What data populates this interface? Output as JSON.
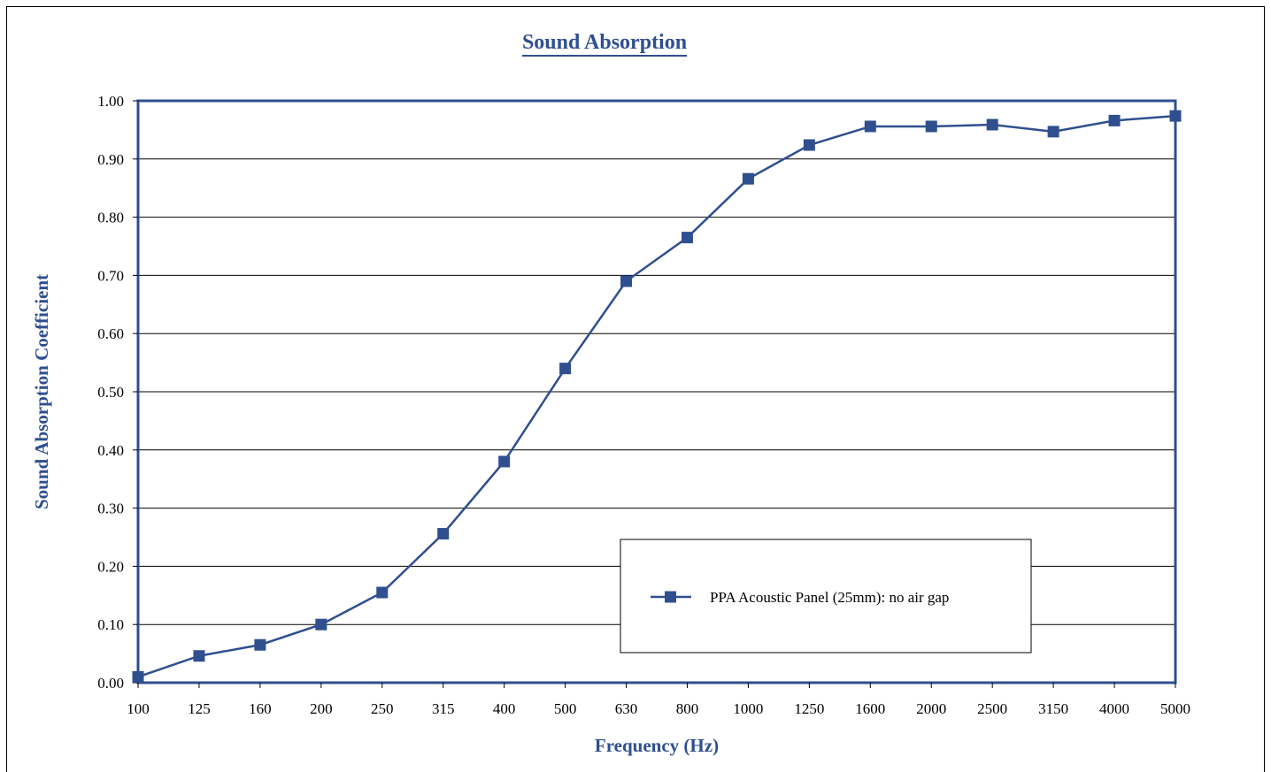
{
  "chart_data": {
    "type": "line",
    "title": "Sound Absorption",
    "xlabel": "Frequency (Hz)",
    "ylabel": "Sound Absorption Coefficient",
    "categories": [
      "100",
      "125",
      "160",
      "200",
      "250",
      "315",
      "400",
      "500",
      "630",
      "800",
      "1000",
      "1250",
      "1600",
      "2000",
      "2500",
      "3150",
      "4000",
      "5000"
    ],
    "y_ticks": [
      "0.00",
      "0.10",
      "0.20",
      "0.30",
      "0.40",
      "0.50",
      "0.60",
      "0.70",
      "0.80",
      "0.90",
      "1.00"
    ],
    "ylim": [
      0,
      1
    ],
    "grid": "horizontal",
    "legend_position": "bottom-right",
    "series": [
      {
        "name": "PPA Acoustic Panel (25mm): no air gap",
        "color": "#2f4f8f",
        "marker": "square",
        "values": [
          0.01,
          0.046,
          0.065,
          0.1,
          0.155,
          0.256,
          0.38,
          0.54,
          0.69,
          0.765,
          0.866,
          0.924,
          0.956,
          0.956,
          0.959,
          0.947,
          0.966,
          0.974
        ]
      }
    ]
  }
}
